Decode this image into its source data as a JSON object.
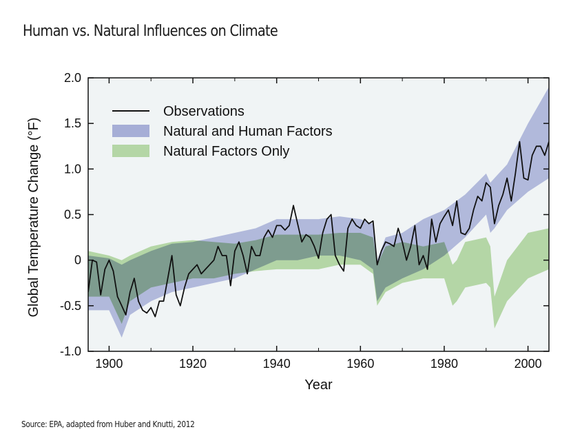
{
  "title": "Human vs. Natural Influences on Climate",
  "source": "Source: EPA, adapted from Huber and Knutti, 2012",
  "colors": {
    "plot_bg": "#f0f4f5",
    "natural_band": "#b4d6a6",
    "human_band": "#a6aed6",
    "overlap": "#86a8a0",
    "observations": "#111111"
  },
  "chart_data": {
    "type": "line",
    "xlabel": "Year",
    "ylabel": "Global Temperature Change (°F)",
    "xlim": [
      1895,
      2005
    ],
    "ylim": [
      -1.0,
      2.0
    ],
    "x_ticks": [
      1900,
      1920,
      1940,
      1960,
      1980,
      2000
    ],
    "y_ticks": [
      -1.0,
      -0.5,
      0,
      0.5,
      1.0,
      1.5,
      2.0
    ],
    "y_tick_labels": [
      "-1.0",
      "-0.5",
      "0",
      "0.5",
      "1.0",
      "1.5",
      "2.0"
    ],
    "grid": false,
    "legend_position": "top-left",
    "series": [
      {
        "name": "Observations",
        "type": "line",
        "x": [
          1895,
          1896,
          1897,
          1898,
          1899,
          1900,
          1901,
          1902,
          1903,
          1904,
          1905,
          1906,
          1907,
          1908,
          1909,
          1910,
          1911,
          1912,
          1913,
          1914,
          1915,
          1916,
          1917,
          1918,
          1919,
          1920,
          1921,
          1922,
          1923,
          1924,
          1925,
          1926,
          1927,
          1928,
          1929,
          1930,
          1931,
          1932,
          1933,
          1934,
          1935,
          1936,
          1937,
          1938,
          1939,
          1940,
          1941,
          1942,
          1943,
          1944,
          1945,
          1946,
          1947,
          1948,
          1949,
          1950,
          1951,
          1952,
          1953,
          1954,
          1955,
          1956,
          1957,
          1958,
          1959,
          1960,
          1961,
          1962,
          1963,
          1964,
          1965,
          1966,
          1967,
          1968,
          1969,
          1970,
          1971,
          1972,
          1973,
          1974,
          1975,
          1976,
          1977,
          1978,
          1979,
          1980,
          1981,
          1982,
          1983,
          1984,
          1985,
          1986,
          1987,
          1988,
          1989,
          1990,
          1991,
          1992,
          1993,
          1994,
          1995,
          1996,
          1997,
          1998,
          1999,
          2000,
          2001,
          2002,
          2003,
          2004,
          2005
        ],
        "y": [
          -0.35,
          0.0,
          -0.02,
          -0.38,
          -0.1,
          0.0,
          -0.12,
          -0.4,
          -0.5,
          -0.6,
          -0.35,
          -0.2,
          -0.45,
          -0.55,
          -0.58,
          -0.52,
          -0.62,
          -0.45,
          -0.45,
          -0.2,
          0.05,
          -0.38,
          -0.5,
          -0.3,
          -0.15,
          -0.1,
          -0.05,
          -0.15,
          -0.1,
          -0.05,
          0.0,
          0.15,
          0.05,
          0.05,
          -0.28,
          0.1,
          0.2,
          0.05,
          -0.15,
          0.15,
          0.05,
          0.05,
          0.25,
          0.33,
          0.25,
          0.38,
          0.38,
          0.33,
          0.38,
          0.6,
          0.4,
          0.2,
          0.28,
          0.25,
          0.15,
          0.02,
          0.3,
          0.45,
          0.5,
          0.05,
          -0.05,
          -0.12,
          0.35,
          0.45,
          0.38,
          0.35,
          0.45,
          0.4,
          0.43,
          -0.05,
          0.1,
          0.2,
          0.18,
          0.15,
          0.35,
          0.2,
          0.0,
          0.15,
          0.38,
          -0.05,
          0.05,
          -0.1,
          0.45,
          0.2,
          0.4,
          0.48,
          0.55,
          0.38,
          0.65,
          0.3,
          0.28,
          0.35,
          0.55,
          0.7,
          0.65,
          0.85,
          0.8,
          0.4,
          0.6,
          0.72,
          0.9,
          0.65,
          0.95,
          1.3,
          0.9,
          0.88,
          1.15,
          1.25,
          1.25,
          1.15,
          1.3
        ]
      },
      {
        "name": "Natural and Human Factors",
        "type": "band",
        "x": [
          1895,
          1900,
          1903,
          1905,
          1910,
          1915,
          1920,
          1925,
          1930,
          1935,
          1940,
          1945,
          1950,
          1955,
          1960,
          1963,
          1964,
          1966,
          1970,
          1975,
          1980,
          1985,
          1990,
          1991,
          1992,
          1995,
          2000,
          2005
        ],
        "upper": [
          0.05,
          0.02,
          -0.05,
          0.0,
          0.1,
          0.18,
          0.2,
          0.25,
          0.3,
          0.35,
          0.45,
          0.45,
          0.45,
          0.48,
          0.45,
          0.4,
          0.0,
          0.25,
          0.3,
          0.45,
          0.55,
          0.72,
          0.95,
          0.85,
          0.9,
          1.05,
          1.5,
          1.9
        ],
        "lower": [
          -0.55,
          -0.55,
          -0.85,
          -0.6,
          -0.45,
          -0.35,
          -0.3,
          -0.25,
          -0.2,
          -0.1,
          0.0,
          0.0,
          0.05,
          0.05,
          0.0,
          -0.1,
          -0.45,
          -0.3,
          -0.2,
          -0.1,
          0.05,
          0.25,
          0.5,
          0.3,
          0.35,
          0.55,
          0.75,
          0.9
        ]
      },
      {
        "name": "Natural Factors Only",
        "type": "band",
        "x": [
          1895,
          1900,
          1903,
          1905,
          1910,
          1915,
          1920,
          1925,
          1930,
          1935,
          1940,
          1945,
          1950,
          1955,
          1960,
          1963,
          1964,
          1966,
          1970,
          1975,
          1980,
          1982,
          1983,
          1985,
          1990,
          1991,
          1992,
          1995,
          2000,
          2005
        ],
        "upper": [
          0.1,
          0.05,
          0.0,
          0.05,
          0.15,
          0.2,
          0.22,
          0.2,
          0.18,
          0.22,
          0.28,
          0.28,
          0.28,
          0.3,
          0.3,
          0.25,
          -0.05,
          0.15,
          0.2,
          0.15,
          0.2,
          -0.05,
          0.0,
          0.2,
          0.25,
          0.15,
          -0.4,
          0.0,
          0.3,
          0.35
        ],
        "lower": [
          -0.4,
          -0.4,
          -0.7,
          -0.45,
          -0.3,
          -0.25,
          -0.2,
          -0.2,
          -0.15,
          -0.12,
          -0.1,
          -0.1,
          -0.1,
          -0.05,
          -0.05,
          -0.15,
          -0.5,
          -0.35,
          -0.25,
          -0.2,
          -0.2,
          -0.5,
          -0.45,
          -0.3,
          -0.25,
          -0.3,
          -0.75,
          -0.45,
          -0.2,
          -0.1
        ]
      }
    ]
  }
}
